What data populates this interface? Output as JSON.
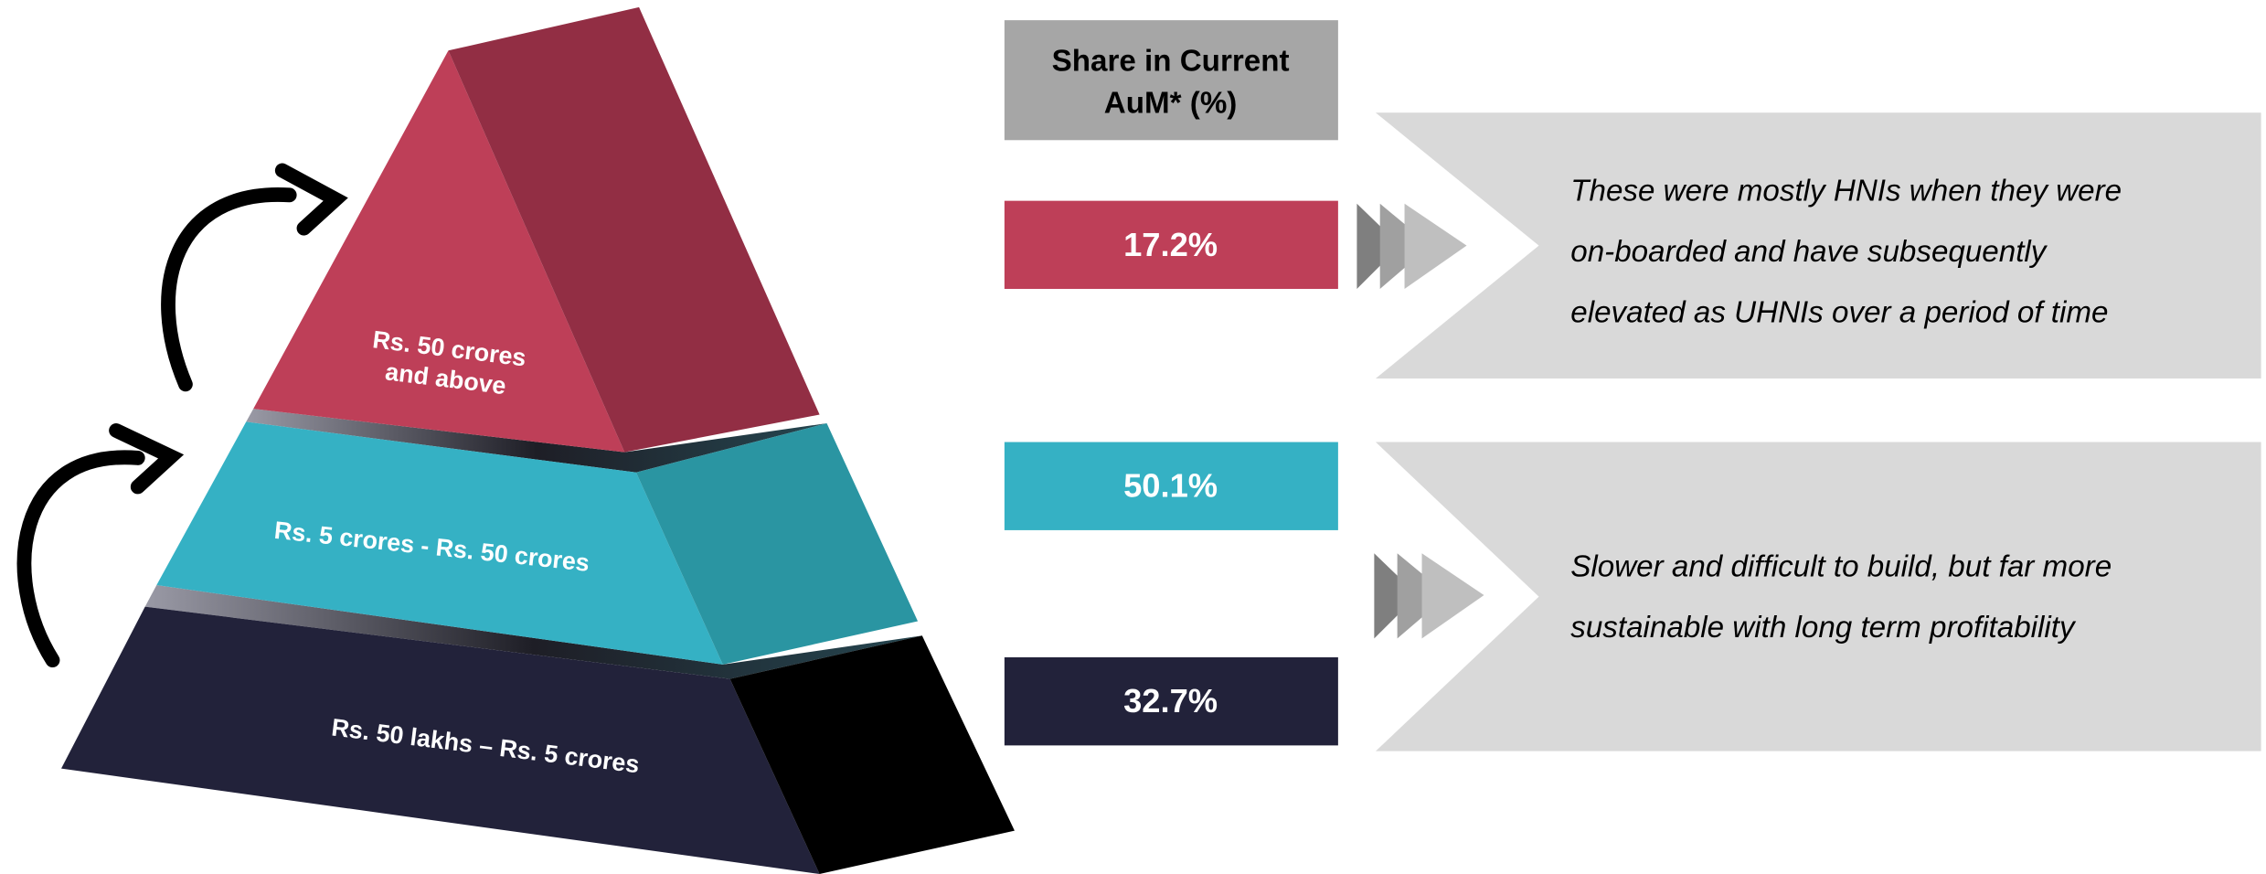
{
  "header": {
    "lines": [
      "Share in Current",
      "AuM*  (%)"
    ]
  },
  "tiers": [
    {
      "label_lines": [
        "Rs. 50 crores",
        "and above"
      ],
      "share": "17.2%"
    },
    {
      "label_lines": [
        "Rs. 5 crores - Rs. 50 crores"
      ],
      "share": "50.1%"
    },
    {
      "label_lines": [
        "Rs. 50 lakhs – Rs. 5 crores"
      ],
      "share": "32.7%"
    }
  ],
  "notes": [
    {
      "lines": [
        "These were mostly HNIs when they were",
        "on-boarded and have subsequently",
        "elevated as UHNIs over a period of time"
      ]
    },
    {
      "lines": [
        "Slower and difficult to build, but far more",
        "sustainable with long term profitability"
      ]
    }
  ]
}
